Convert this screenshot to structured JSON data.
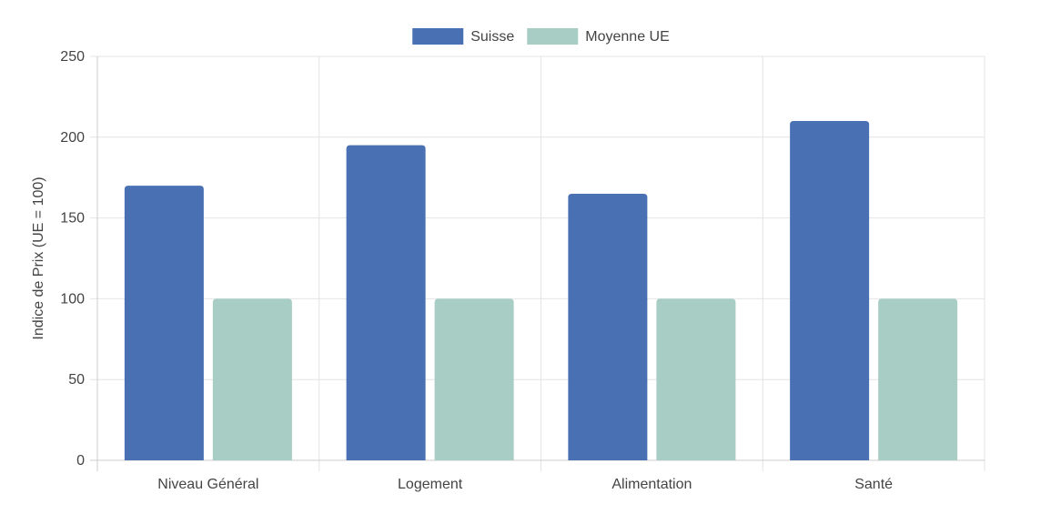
{
  "chart_data": {
    "type": "bar",
    "title": "",
    "xlabel": "",
    "ylabel": "Indice de Prix (UE = 100)",
    "categories": [
      "Niveau Général",
      "Logement",
      "Alimentation",
      "Santé"
    ],
    "series": [
      {
        "name": "Suisse",
        "values": [
          170,
          195,
          165,
          210
        ],
        "color": "#4a70b4"
      },
      {
        "name": "Moyenne UE",
        "values": [
          100,
          100,
          100,
          100
        ],
        "color": "#a8cdc5"
      }
    ],
    "ylim": [
      0,
      250
    ],
    "yticks": [
      0,
      50,
      100,
      150,
      200,
      250
    ],
    "grid": true,
    "legend_position": "top-center"
  }
}
